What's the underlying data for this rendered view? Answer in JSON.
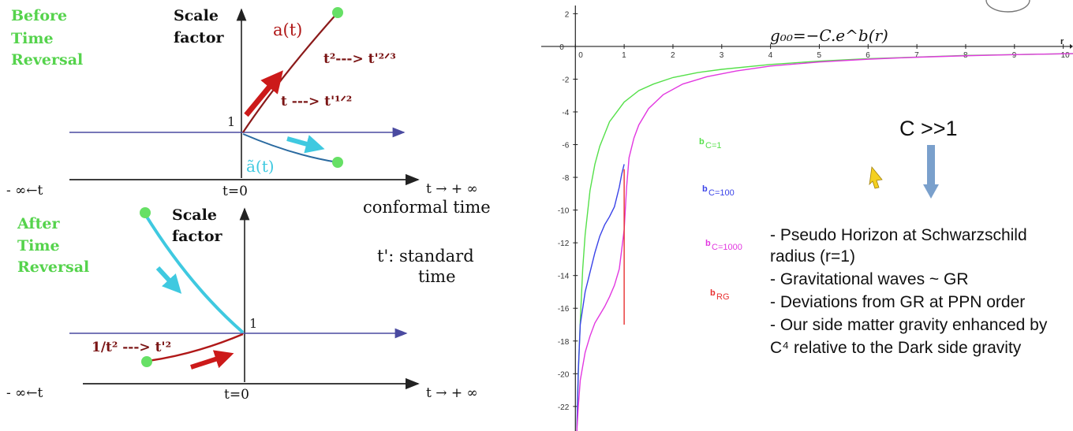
{
  "left_panel": {
    "top": {
      "title_lines": [
        "Before",
        "Time",
        "Reversal"
      ],
      "y_label_lines": [
        "Scale",
        "factor"
      ],
      "curve_label": "a(t)",
      "mirror_label": "ã(t)",
      "annotation_upper": "t²---> t'²ᐟ³",
      "annotation_lower": "t ---> t'¹ᐟ²",
      "origin_value": "1",
      "x_left": "- ∞←t",
      "x_center": "t=0",
      "x_right": "t → + ∞",
      "x_note": "conformal time"
    },
    "bottom": {
      "title_lines": [
        "After",
        "Time",
        "Reversal"
      ],
      "y_label_lines": [
        "Scale",
        "factor"
      ],
      "annotation": "1/t² ---> t'²",
      "origin_value": "1",
      "note_lines": [
        "t': standard",
        "time"
      ],
      "x_left": "- ∞←t",
      "x_center": "t=0",
      "x_right": "t → + ∞"
    }
  },
  "right_panel": {
    "formula": "g₀₀=−C.e^b(r)",
    "x_axis_label": "r",
    "big_label": "C >>1",
    "legend": [
      {
        "base": "b",
        "sub": "C=1",
        "color": "#55e04a"
      },
      {
        "base": "b",
        "sub": "C=100",
        "color": "#3a43e8"
      },
      {
        "base": "b",
        "sub": "C=1000",
        "color": "#e238e0"
      },
      {
        "base": "b",
        "sub": "RG",
        "color": "#e83030"
      }
    ],
    "notes": [
      "- Pseudo Horizon at Schwarzschild",
      "radius (r=1)",
      "- Gravitational waves ~ GR",
      "- Deviations from GR at PPN order",
      "- Our side matter gravity enhanced by",
      "C⁴ relative to the Dark side gravity"
    ]
  },
  "chart_data": {
    "type": "line",
    "x_ticks": [
      0,
      1,
      2,
      3,
      4,
      5,
      6,
      7,
      8,
      9,
      10
    ],
    "y_ticks": [
      2,
      0,
      -2,
      -4,
      -6,
      -8,
      -10,
      -12,
      -14,
      -16,
      -18,
      -20,
      -22
    ],
    "xlim": [
      -0.7,
      10.2
    ],
    "ylim": [
      -23.5,
      2.5
    ],
    "xlabel": "r",
    "series": [
      {
        "name": "C=1",
        "color": "#55e04a",
        "x": [
          0.03,
          0.06,
          0.1,
          0.15,
          0.2,
          0.3,
          0.4,
          0.5,
          0.7,
          1.0,
          1.3,
          1.6,
          2.0,
          2.5,
          3,
          4,
          5,
          6,
          7,
          8,
          9,
          10.2
        ],
        "y": [
          -23.5,
          -20.0,
          -16.8,
          -13.6,
          -11.5,
          -8.8,
          -7.2,
          -6.1,
          -4.6,
          -3.4,
          -2.7,
          -2.3,
          -1.9,
          -1.6,
          -1.4,
          -1.1,
          -0.9,
          -0.75,
          -0.65,
          -0.55,
          -0.5,
          -0.44
        ]
      },
      {
        "name": "C=100",
        "color": "#3a43e8",
        "x": [
          0.03,
          0.06,
          0.1,
          0.2,
          0.3,
          0.4,
          0.5,
          0.6,
          0.7,
          0.8,
          0.9,
          0.95,
          1.0
        ],
        "y": [
          -23.5,
          -19.8,
          -17.0,
          -15.0,
          -13.8,
          -12.6,
          -11.6,
          -10.9,
          -10.4,
          -9.8,
          -8.6,
          -7.8,
          -7.2
        ]
      },
      {
        "name": "C=1000",
        "color": "#e238e0",
        "x": [
          0.03,
          0.06,
          0.1,
          0.2,
          0.3,
          0.4,
          0.5,
          0.6,
          0.7,
          0.8,
          0.9,
          1.0,
          1.05,
          1.1,
          1.2,
          1.3,
          1.5,
          1.8,
          2.2,
          2.7,
          3.3,
          4,
          5,
          6,
          7,
          8,
          9,
          10.2
        ],
        "y": [
          -23.5,
          -22.0,
          -20.4,
          -18.7,
          -17.7,
          -16.9,
          -16.4,
          -15.9,
          -15.3,
          -14.6,
          -13.6,
          -11.2,
          -8.6,
          -6.8,
          -5.6,
          -4.8,
          -3.8,
          -2.95,
          -2.3,
          -1.85,
          -1.5,
          -1.2,
          -0.95,
          -0.78,
          -0.66,
          -0.57,
          -0.5,
          -0.44
        ]
      },
      {
        "name": "RG",
        "color": "#e83030",
        "x": [
          1.0,
          1.0
        ],
        "y": [
          -7.5,
          -17.0
        ]
      }
    ]
  }
}
